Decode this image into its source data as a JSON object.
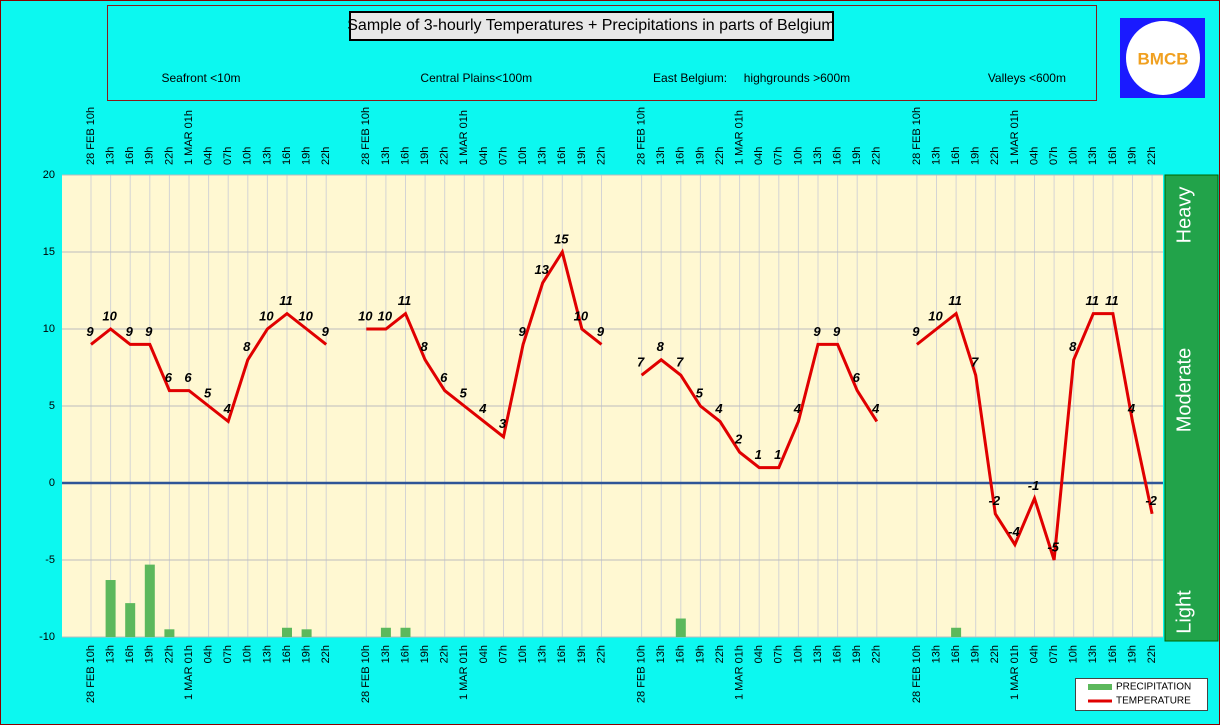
{
  "chart_data": {
    "type": "line",
    "title": "Sample of 3-hourly Temperatures + Precipitations in parts of Belgium",
    "logo": "BMCB",
    "panels": [
      "Seafront <10m",
      "Central Plains<100m",
      "East Belgium:     highgrounds >600m",
      "Valleys <600m"
    ],
    "categories": [
      "28 FEB 10h",
      "13h",
      "16h",
      "19h",
      "22h",
      "1 MAR 01h",
      "04h",
      "07h",
      "10h",
      "13h",
      "16h",
      "19h",
      "22h"
    ],
    "ylim": [
      -10,
      20
    ],
    "yticks": [
      -10,
      -5,
      0,
      5,
      10,
      15,
      20
    ],
    "grid": true,
    "zero_line_color": "#2f5597",
    "intensity_bands": [
      "Light",
      "Moderate",
      "Heavy"
    ],
    "legend_position": "bottom-right",
    "series": [
      {
        "name": "PRECIPITATION",
        "type": "bar",
        "color": "#5cb85c",
        "values": [
          [
            null,
            -6.3,
            -7.8,
            -5.3,
            -9.5,
            null,
            null,
            null,
            null,
            null,
            -9.4,
            -9.5,
            null
          ],
          [
            null,
            -9.4,
            -9.4,
            null,
            null,
            null,
            null,
            null,
            null,
            null,
            null,
            null,
            null
          ],
          [
            null,
            null,
            -8.8,
            null,
            null,
            null,
            null,
            null,
            null,
            null,
            null,
            null,
            null
          ],
          [
            null,
            null,
            -9.4,
            null,
            null,
            null,
            null,
            null,
            null,
            null,
            null,
            null,
            null
          ]
        ]
      },
      {
        "name": "TEMPERATURE",
        "type": "line",
        "color": "#e00000",
        "values": [
          [
            9,
            10,
            9,
            9,
            6,
            6,
            5,
            4,
            8,
            10,
            11,
            10,
            9
          ],
          [
            10,
            10,
            11,
            8,
            6,
            5,
            4,
            3,
            9,
            13,
            15,
            10,
            9
          ],
          [
            7,
            8,
            7,
            5,
            4,
            2,
            1,
            1,
            4,
            9,
            9,
            6,
            4
          ],
          [
            9,
            10,
            11,
            7,
            -2,
            -4,
            -1,
            -5,
            8,
            11,
            11,
            4,
            -2
          ]
        ]
      }
    ]
  }
}
